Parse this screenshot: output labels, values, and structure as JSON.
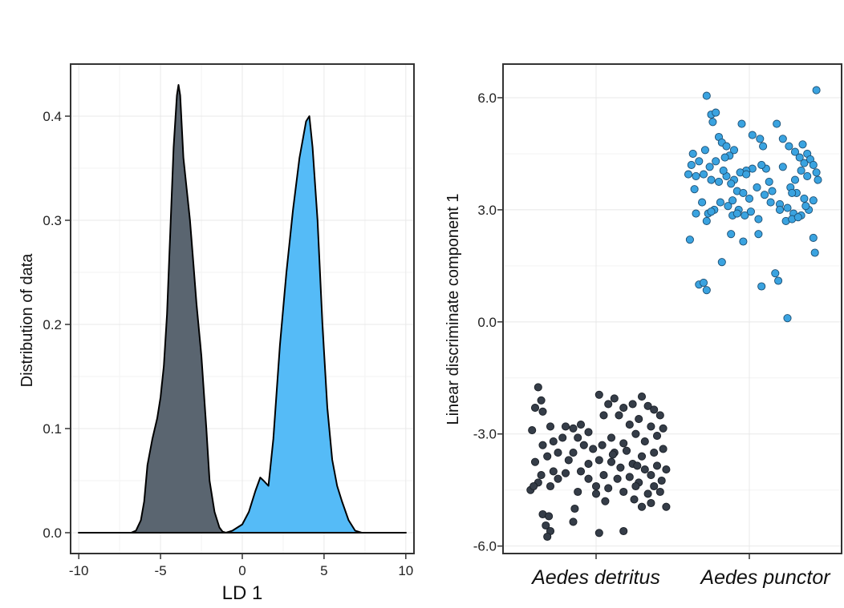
{
  "chart_data": [
    {
      "type": "area",
      "xlabel": "LD 1",
      "ylabel": "Distribution of data",
      "xlim": [
        -10.5,
        10.5
      ],
      "ylim": [
        -0.02,
        0.45
      ],
      "xticks": [
        -10,
        -5,
        0,
        5,
        10
      ],
      "xtick_labels": [
        "-10",
        "-5",
        "0",
        "5",
        "10"
      ],
      "yticks": [
        0.0,
        0.1,
        0.2,
        0.3,
        0.4
      ],
      "ytick_labels": [
        "0.0",
        "0.1",
        "0.2",
        "0.3",
        "0.4"
      ],
      "grid": true,
      "series": [
        {
          "color": "#5a6570",
          "x": [
            -10,
            -6.8,
            -6.5,
            -6.2,
            -6.0,
            -5.8,
            -5.5,
            -5.2,
            -5.0,
            -4.8,
            -4.6,
            -4.4,
            -4.2,
            -4.0,
            -3.9,
            -3.8,
            -3.6,
            -3.4,
            -3.2,
            -3.0,
            -2.8,
            -2.5,
            -2.2,
            -2.0,
            -1.7,
            -1.4,
            -1.2,
            -1.0,
            10
          ],
          "y": [
            0,
            0,
            0.002,
            0.012,
            0.03,
            0.065,
            0.09,
            0.11,
            0.13,
            0.16,
            0.21,
            0.29,
            0.37,
            0.42,
            0.43,
            0.42,
            0.36,
            0.33,
            0.3,
            0.26,
            0.22,
            0.17,
            0.1,
            0.05,
            0.02,
            0.005,
            0.001,
            0,
            0
          ]
        },
        {
          "color": "#55bbf7",
          "x": [
            -10,
            -1.0,
            -0.6,
            0.0,
            0.4,
            0.8,
            1.1,
            1.3,
            1.6,
            1.9,
            2.3,
            2.7,
            3.1,
            3.5,
            3.9,
            4.1,
            4.3,
            4.6,
            4.9,
            5.2,
            5.5,
            5.8,
            6.1,
            6.5,
            6.9,
            7.3,
            10
          ],
          "y": [
            0,
            0,
            0.002,
            0.008,
            0.02,
            0.04,
            0.053,
            0.05,
            0.045,
            0.09,
            0.18,
            0.25,
            0.31,
            0.36,
            0.395,
            0.4,
            0.37,
            0.3,
            0.2,
            0.12,
            0.07,
            0.045,
            0.03,
            0.012,
            0.002,
            0,
            0
          ]
        }
      ]
    },
    {
      "type": "scatter",
      "xlabel": "",
      "ylabel": "Linear discriminate component 1",
      "categories": [
        "Aedes detritus",
        "Aedes punctor"
      ],
      "ylim": [
        -6.2,
        6.9
      ],
      "yticks": [
        -6.0,
        -3.0,
        0.0,
        3.0,
        6.0
      ],
      "ytick_labels": [
        "-6.0",
        "-3.0",
        "0.0",
        "3.0",
        "6.0"
      ],
      "grid": true,
      "series": [
        {
          "category": "Aedes detritus",
          "color": "#353d48",
          "points": [
            [
              -0.38,
              -1.75
            ],
            [
              -0.36,
              -2.1
            ],
            [
              -0.4,
              -2.3
            ],
            [
              -0.35,
              -2.4
            ],
            [
              -0.42,
              -2.9
            ],
            [
              -0.3,
              -2.8
            ],
            [
              -0.2,
              -2.8
            ],
            [
              -0.15,
              -2.85
            ],
            [
              -0.1,
              -2.75
            ],
            [
              -0.05,
              -2.95
            ],
            [
              -0.22,
              -3.1
            ],
            [
              -0.12,
              -3.1
            ],
            [
              -0.28,
              -3.2
            ],
            [
              -0.35,
              -3.3
            ],
            [
              -0.08,
              -3.3
            ],
            [
              -0.25,
              -3.5
            ],
            [
              -0.15,
              -3.5
            ],
            [
              -0.02,
              -3.4
            ],
            [
              -0.32,
              -3.6
            ],
            [
              -0.18,
              -3.7
            ],
            [
              -0.05,
              -3.8
            ],
            [
              -0.4,
              -3.75
            ],
            [
              -0.36,
              -4.1
            ],
            [
              -0.28,
              -4.0
            ],
            [
              -0.2,
              -4.05
            ],
            [
              -0.1,
              -4.0
            ],
            [
              -0.38,
              -4.3
            ],
            [
              -0.3,
              -4.4
            ],
            [
              -0.25,
              -4.2
            ],
            [
              -0.43,
              -4.5
            ],
            [
              -0.41,
              -4.4
            ],
            [
              -0.12,
              -4.55
            ],
            [
              -0.05,
              -4.2
            ],
            [
              -0.35,
              -5.15
            ],
            [
              -0.31,
              -5.2
            ],
            [
              -0.33,
              -5.45
            ],
            [
              -0.3,
              -5.6
            ],
            [
              -0.32,
              -5.75
            ],
            [
              -0.14,
              -5.0
            ],
            [
              -0.15,
              -5.35
            ],
            [
              0.02,
              -1.95
            ],
            [
              0.08,
              -2.2
            ],
            [
              0.12,
              -2.05
            ],
            [
              0.18,
              -2.3
            ],
            [
              0.24,
              -2.2
            ],
            [
              0.3,
              -2.0
            ],
            [
              0.34,
              -2.25
            ],
            [
              0.38,
              -2.35
            ],
            [
              0.42,
              -2.5
            ],
            [
              0.05,
              -2.5
            ],
            [
              0.15,
              -2.5
            ],
            [
              0.22,
              -2.75
            ],
            [
              0.28,
              -2.6
            ],
            [
              0.36,
              -2.8
            ],
            [
              0.44,
              -2.85
            ],
            [
              0.4,
              -3.05
            ],
            [
              0.32,
              -3.2
            ],
            [
              0.26,
              -3.0
            ],
            [
              0.18,
              -3.25
            ],
            [
              0.1,
              -3.1
            ],
            [
              0.04,
              -3.3
            ],
            [
              0.12,
              -3.5
            ],
            [
              0.2,
              -3.45
            ],
            [
              0.3,
              -3.6
            ],
            [
              0.38,
              -3.5
            ],
            [
              0.44,
              -3.4
            ],
            [
              0.02,
              -3.7
            ],
            [
              0.1,
              -3.75
            ],
            [
              0.16,
              -3.9
            ],
            [
              0.24,
              -3.8
            ],
            [
              0.32,
              -3.95
            ],
            [
              0.4,
              -3.85
            ],
            [
              0.46,
              -3.95
            ],
            [
              0.05,
              -4.1
            ],
            [
              0.14,
              -4.2
            ],
            [
              0.22,
              -4.15
            ],
            [
              0.28,
              -4.3
            ],
            [
              0.36,
              -4.1
            ],
            [
              0.43,
              -4.25
            ],
            [
              0.0,
              -4.4
            ],
            [
              0.08,
              -4.45
            ],
            [
              0.18,
              -4.55
            ],
            [
              0.26,
              -4.4
            ],
            [
              0.34,
              -4.6
            ],
            [
              0.42,
              -4.55
            ],
            [
              0.46,
              -4.95
            ],
            [
              0.36,
              -4.85
            ],
            [
              0.3,
              -4.95
            ],
            [
              0.06,
              -4.8
            ],
            [
              0.0,
              -4.6
            ],
            [
              0.02,
              -5.65
            ],
            [
              0.18,
              -5.6
            ],
            [
              0.25,
              -4.75
            ],
            [
              0.38,
              -4.4
            ],
            [
              0.11,
              -3.55
            ],
            [
              0.27,
              -3.85
            ]
          ]
        },
        {
          "category": "Aedes punctor",
          "color": "#3aa3e0",
          "points": [
            [
              -0.28,
              6.05
            ],
            [
              -0.25,
              5.55
            ],
            [
              -0.22,
              5.6
            ],
            [
              -0.24,
              5.35
            ],
            [
              -0.2,
              4.95
            ],
            [
              -0.18,
              4.8
            ],
            [
              -0.15,
              4.7
            ],
            [
              -0.13,
              4.45
            ],
            [
              -0.1,
              4.6
            ],
            [
              -0.05,
              5.3
            ],
            [
              0.02,
              5.0
            ],
            [
              0.07,
              4.9
            ],
            [
              0.09,
              4.7
            ],
            [
              0.18,
              5.3
            ],
            [
              0.22,
              4.9
            ],
            [
              0.26,
              4.7
            ],
            [
              0.3,
              4.55
            ],
            [
              0.35,
              4.75
            ],
            [
              0.38,
              4.5
            ],
            [
              0.36,
              4.25
            ],
            [
              0.33,
              4.4
            ],
            [
              0.4,
              4.35
            ],
            [
              0.42,
              4.2
            ],
            [
              0.44,
              4.0
            ],
            [
              0.38,
              3.9
            ],
            [
              0.34,
              4.05
            ],
            [
              0.3,
              3.8
            ],
            [
              0.27,
              3.6
            ],
            [
              0.31,
              3.45
            ],
            [
              0.36,
              3.3
            ],
            [
              0.42,
              3.25
            ],
            [
              0.45,
              3.8
            ],
            [
              0.39,
              3.0
            ],
            [
              0.34,
              2.85
            ],
            [
              0.29,
              2.9
            ],
            [
              0.25,
              3.05
            ],
            [
              0.2,
              3.15
            ],
            [
              0.15,
              3.5
            ],
            [
              0.11,
              4.1
            ],
            [
              0.08,
              4.2
            ],
            [
              0.02,
              4.1
            ],
            [
              -0.02,
              4.05
            ],
            [
              -0.06,
              4.0
            ],
            [
              -0.1,
              3.8
            ],
            [
              -0.15,
              3.9
            ],
            [
              -0.2,
              3.75
            ],
            [
              -0.25,
              3.8
            ],
            [
              -0.3,
              3.95
            ],
            [
              -0.35,
              3.9
            ],
            [
              -0.38,
              4.2
            ],
            [
              -0.4,
              3.95
            ],
            [
              -0.37,
              4.5
            ],
            [
              -0.33,
              4.3
            ],
            [
              -0.29,
              4.6
            ],
            [
              -0.26,
              4.15
            ],
            [
              -0.22,
              4.3
            ],
            [
              -0.17,
              4.05
            ],
            [
              -0.12,
              3.7
            ],
            [
              -0.08,
              3.5
            ],
            [
              -0.04,
              3.45
            ],
            [
              0.0,
              3.3
            ],
            [
              0.05,
              3.6
            ],
            [
              0.1,
              3.4
            ],
            [
              0.14,
              3.2
            ],
            [
              0.2,
              3.0
            ],
            [
              0.24,
              2.7
            ],
            [
              0.28,
              2.75
            ],
            [
              0.32,
              2.8
            ],
            [
              0.37,
              3.1
            ],
            [
              -0.36,
              3.55
            ],
            [
              -0.31,
              3.2
            ],
            [
              -0.27,
              2.9
            ],
            [
              -0.23,
              3.0
            ],
            [
              -0.19,
              3.2
            ],
            [
              -0.14,
              3.1
            ],
            [
              -0.11,
              3.25
            ],
            [
              -0.07,
              3.0
            ],
            [
              -0.03,
              2.85
            ],
            [
              0.01,
              2.95
            ],
            [
              0.06,
              2.75
            ],
            [
              -0.28,
              2.7
            ],
            [
              -0.25,
              2.95
            ],
            [
              -0.11,
              2.85
            ],
            [
              -0.08,
              2.9
            ],
            [
              -0.35,
              2.9
            ],
            [
              -0.39,
              2.2
            ],
            [
              -0.04,
              2.15
            ],
            [
              -0.12,
              2.35
            ],
            [
              0.06,
              2.35
            ],
            [
              0.42,
              2.25
            ],
            [
              0.43,
              1.85
            ],
            [
              -0.18,
              1.6
            ],
            [
              -0.33,
              1.0
            ],
            [
              -0.3,
              1.05
            ],
            [
              -0.28,
              0.85
            ],
            [
              0.08,
              0.95
            ],
            [
              0.17,
              1.3
            ],
            [
              0.19,
              1.1
            ],
            [
              0.25,
              0.1
            ],
            [
              0.44,
              6.2
            ],
            [
              0.22,
              4.15
            ],
            [
              -0.02,
              3.95
            ],
            [
              0.13,
              3.75
            ],
            [
              -0.16,
              4.4
            ],
            [
              0.28,
              3.45
            ]
          ]
        }
      ]
    }
  ]
}
